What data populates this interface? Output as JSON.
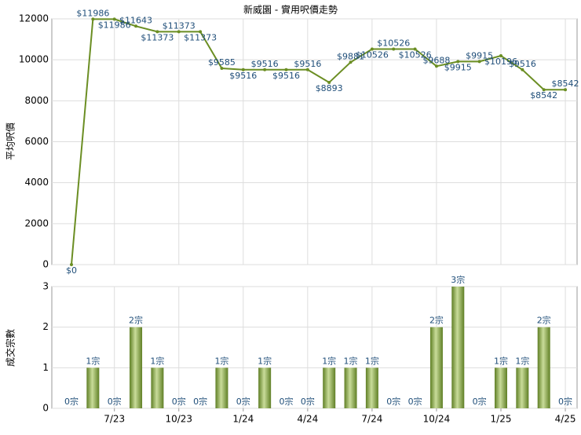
{
  "chart_data": [
    {
      "type": "line",
      "title": "新威園 - 實用呎價走勢",
      "ylabel": "平均呎價",
      "color": "#6b8e23",
      "values": [
        0,
        11986,
        11986,
        11643,
        11373,
        11373,
        11373,
        9585,
        9516,
        9516,
        9516,
        9516,
        8893,
        9881,
        10526,
        10526,
        10526,
        9688,
        9915,
        9915,
        10196,
        9516,
        8542,
        8542
      ],
      "value_labels": [
        "$0",
        "$11986",
        "$11986",
        "$11643",
        "$11373",
        "$11373",
        "$11373",
        "$9585",
        "$9516",
        "$9516",
        "$9516",
        "$9516",
        "$8893",
        "$9881",
        "$10526",
        "$10526",
        "$10526",
        "$9688",
        "$9915",
        "$9915",
        "$10196",
        "$9516",
        "$8542",
        "$8542"
      ],
      "ylim": [
        0,
        12000
      ],
      "yticks": [
        0,
        2000,
        4000,
        6000,
        8000,
        10000,
        12000
      ],
      "grid": true
    },
    {
      "type": "bar",
      "ylabel": "成交宗數",
      "color": "#7a9a3a",
      "categories": [
        null,
        null,
        "7/23",
        null,
        null,
        "10/23",
        null,
        null,
        "1/24",
        null,
        null,
        "4/24",
        null,
        null,
        "7/24",
        null,
        null,
        "10/24",
        null,
        null,
        "1/25",
        null,
        null,
        "4/25"
      ],
      "values": [
        0,
        1,
        0,
        2,
        1,
        0,
        0,
        1,
        0,
        1,
        0,
        0,
        1,
        1,
        1,
        0,
        0,
        2,
        3,
        0,
        1,
        1,
        2,
        0
      ],
      "value_labels": [
        "0宗",
        "1宗",
        "0宗",
        "2宗",
        "1宗",
        "0宗",
        "0宗",
        "1宗",
        "0宗",
        "1宗",
        "0宗",
        "0宗",
        "1宗",
        "1宗",
        "1宗",
        "0宗",
        "0宗",
        "2宗",
        "3宗",
        "0宗",
        "1宗",
        "1宗",
        "2宗",
        "0宗"
      ],
      "ylim": [
        0,
        3
      ],
      "yticks": [
        0,
        1,
        2,
        3
      ],
      "grid": true
    }
  ]
}
